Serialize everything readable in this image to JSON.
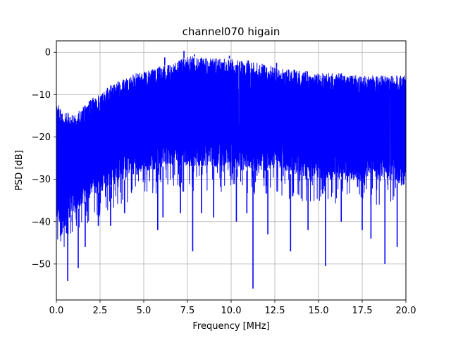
{
  "chart_data": {
    "type": "line",
    "title": "channel070 higain",
    "xlabel": "Frequency [MHz]",
    "ylabel": "PSD [dB]",
    "xlim": [
      0,
      20
    ],
    "ylim": [
      -58.5,
      2.7
    ],
    "xticks": [
      0,
      2.5,
      5,
      7.5,
      10,
      12.5,
      15,
      17.5,
      20
    ],
    "xtick_labels": [
      "0.0",
      "2.5",
      "5.0",
      "7.5",
      "10.0",
      "12.5",
      "15.0",
      "17.5",
      "20.0"
    ],
    "yticks": [
      0,
      -10,
      -20,
      -30,
      -40,
      -50
    ],
    "ytick_labels": [
      "0",
      "−10",
      "−20",
      "−30",
      "−40",
      "−50"
    ],
    "grid": true,
    "series": [
      {
        "color": "#0000ff",
        "envelope": {
          "x": [
            0.0,
            0.5,
            1.0,
            1.5,
            2.0,
            2.5,
            3.0,
            3.5,
            4.0,
            4.5,
            5.0,
            5.5,
            6.0,
            6.5,
            7.0,
            7.5,
            8.0,
            8.5,
            9.0,
            9.5,
            10.0,
            10.5,
            11.0,
            11.5,
            12.0,
            12.5,
            13.0,
            13.5,
            14.0,
            14.5,
            15.0,
            15.5,
            16.0,
            16.5,
            17.0,
            17.5,
            18.0,
            18.5,
            19.0,
            19.5,
            20.0
          ],
          "upper": [
            -12,
            -14,
            -15,
            -13,
            -11,
            -10,
            -8,
            -7,
            -6,
            -5,
            -4.5,
            -4,
            -3,
            -3,
            -2,
            -1,
            -1,
            -1.5,
            -1.5,
            -1.5,
            -1.5,
            -2,
            -2,
            -2.5,
            -3,
            -3.5,
            -4,
            -4,
            -4.5,
            -4.5,
            -5,
            -5,
            -5,
            -5,
            -5.5,
            -5.5,
            -5.5,
            -5.5,
            -5.5,
            -5.5,
            -5.5
          ],
          "lower": [
            -40,
            -40,
            -38,
            -36,
            -34,
            -33,
            -32,
            -31,
            -30,
            -29,
            -28,
            -28,
            -27,
            -27,
            -27,
            -27,
            -27,
            -27,
            -27,
            -27,
            -27,
            -28,
            -28,
            -28,
            -28,
            -27,
            -28,
            -29,
            -29,
            -30,
            -30,
            -30,
            -30,
            -30,
            -30,
            -30,
            -30,
            -30,
            -30,
            -31,
            -32
          ]
        },
        "dips": [
          {
            "x": 0.3,
            "y": -43
          },
          {
            "x": 0.65,
            "y": -54
          },
          {
            "x": 0.9,
            "y": -40
          },
          {
            "x": 1.25,
            "y": -51
          },
          {
            "x": 1.65,
            "y": -46
          },
          {
            "x": 2.4,
            "y": -41
          },
          {
            "x": 3.1,
            "y": -41
          },
          {
            "x": 3.9,
            "y": -38
          },
          {
            "x": 5.8,
            "y": -42
          },
          {
            "x": 6.1,
            "y": -39
          },
          {
            "x": 7.1,
            "y": -38
          },
          {
            "x": 7.8,
            "y": -47
          },
          {
            "x": 8.3,
            "y": -38
          },
          {
            "x": 9.0,
            "y": -39
          },
          {
            "x": 10.3,
            "y": -40
          },
          {
            "x": 10.9,
            "y": -38
          },
          {
            "x": 11.25,
            "y": -55.8
          },
          {
            "x": 12.1,
            "y": -43
          },
          {
            "x": 13.4,
            "y": -47
          },
          {
            "x": 14.4,
            "y": -42
          },
          {
            "x": 15.4,
            "y": -50.5
          },
          {
            "x": 16.3,
            "y": -40
          },
          {
            "x": 17.5,
            "y": -42
          },
          {
            "x": 18.0,
            "y": -44
          },
          {
            "x": 18.8,
            "y": -50
          },
          {
            "x": 19.5,
            "y": -46
          }
        ],
        "peaks": [
          {
            "x": 6.2,
            "y": -1.2
          },
          {
            "x": 7.3,
            "y": 0.3
          },
          {
            "x": 7.9,
            "y": -0.5
          },
          {
            "x": 9.9,
            "y": -0.8
          },
          {
            "x": 12.6,
            "y": -2.5
          }
        ]
      }
    ]
  }
}
